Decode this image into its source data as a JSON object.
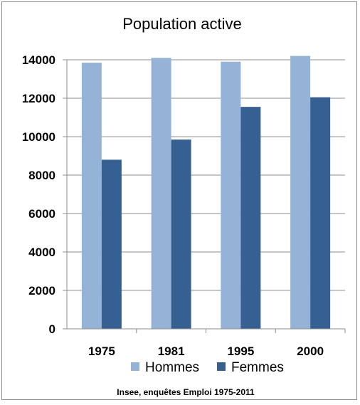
{
  "chart_data": {
    "type": "bar",
    "title": "Population active",
    "categories": [
      "1975",
      "1981",
      "1995",
      "2000"
    ],
    "series": [
      {
        "name": "Hommes",
        "values": [
          13850,
          14100,
          13900,
          14200
        ],
        "color": "#95b3d7"
      },
      {
        "name": "Femmes",
        "values": [
          8800,
          9850,
          11550,
          12050
        ],
        "color": "#366092"
      }
    ],
    "xlabel": "",
    "ylabel": "",
    "ylim": [
      0,
      14000
    ],
    "yticks": [
      0,
      2000,
      4000,
      6000,
      8000,
      10000,
      12000,
      14000
    ],
    "grid": true,
    "legend_position": "bottom",
    "source": "Insee, enquêtes Emploi 1975-2011"
  }
}
